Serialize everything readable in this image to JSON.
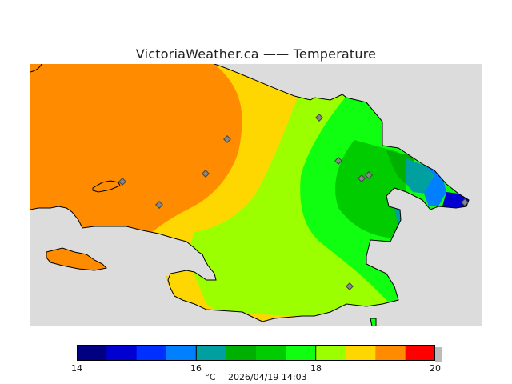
{
  "title": "VictoriaWeather.ca  ——  Temperature",
  "colorbar": {
    "min": 14,
    "max": 20,
    "colors": [
      "#000080",
      "#0000d0",
      "#0030ff",
      "#0080ff",
      "#00a0a0",
      "#00b000",
      "#00cc00",
      "#10ff10",
      "#9cff00",
      "#ffd700",
      "#ff8c00",
      "#ff4000",
      "#ff0000"
    ],
    "tick_labels": [
      "14",
      "16",
      "18",
      "20"
    ]
  },
  "footer": {
    "unit": "°C",
    "timestamp": "2026/04/19 14:03"
  },
  "map": {
    "background_color": "#dcdcdc",
    "land_colors": {
      "orange": "#ff8c00",
      "yellow": "#ffd700",
      "lime": "#9cff00",
      "green": "#10ff10",
      "mid_green": "#00cc00",
      "dark_green": "#00b000",
      "teal": "#00a0a0",
      "blue": "#0080ff",
      "deep_blue": "#0000d0"
    }
  },
  "stations_count_shown": 10
}
